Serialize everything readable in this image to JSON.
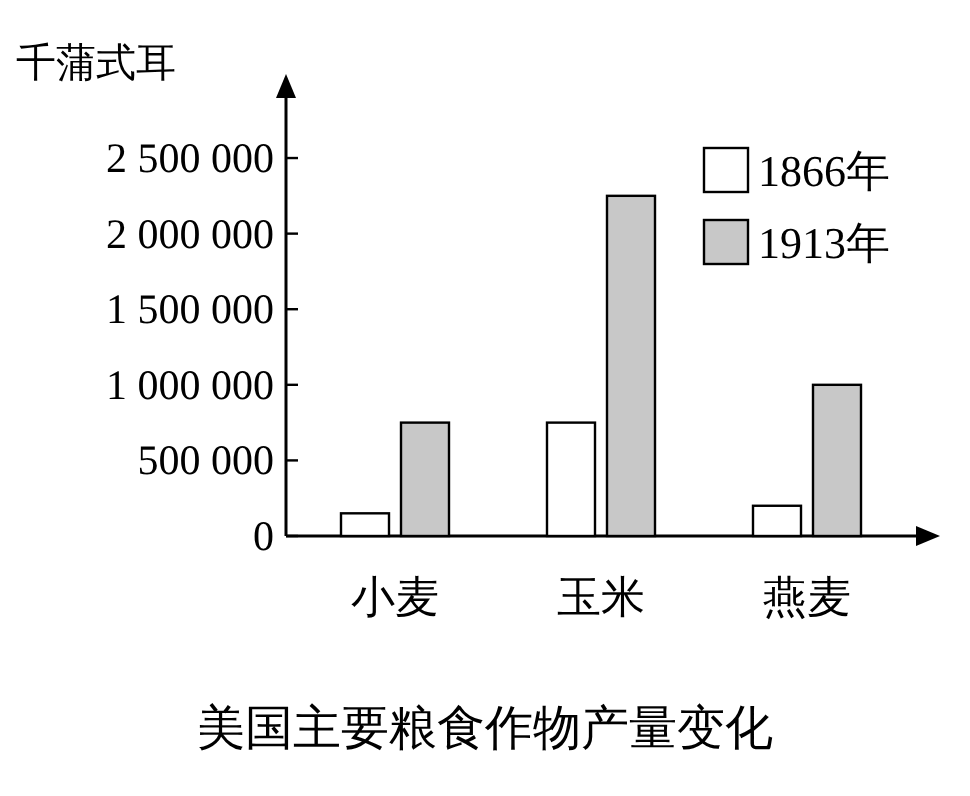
{
  "chart_data": {
    "type": "bar",
    "title": "美国主要粮食作物产量变化",
    "ylabel": "千蒲式耳",
    "categories": [
      "小麦",
      "玉米",
      "燕麦"
    ],
    "series": [
      {
        "name": "1866年",
        "color": "#ffffff",
        "values": [
          150000,
          750000,
          200000
        ]
      },
      {
        "name": "1913年",
        "color": "#c8c8c8",
        "values": [
          750000,
          2250000,
          1000000
        ]
      }
    ],
    "ylim": [
      0,
      2950000
    ],
    "yticks": [
      0,
      {
        "value": 500000,
        "label": "500 000"
      },
      {
        "value": 1000000,
        "label": "1 000 000"
      },
      {
        "value": 1500000,
        "label": "1 500 000"
      },
      {
        "value": 2000000,
        "label": "2 000 000"
      },
      {
        "value": 2500000,
        "label": "2 500 000"
      }
    ],
    "legend": "top right",
    "grid": false
  }
}
